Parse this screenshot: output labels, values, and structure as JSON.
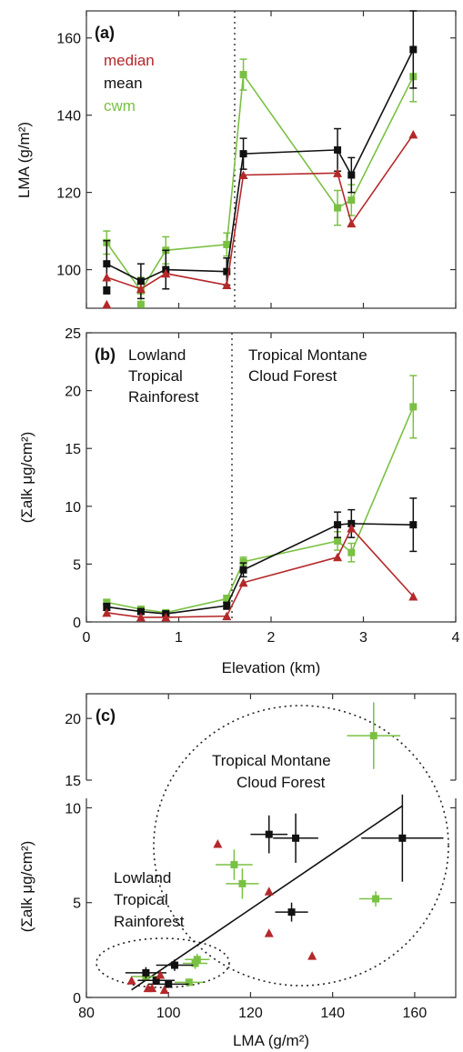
{
  "colors": {
    "median": "#b5282a",
    "mean": "#111111",
    "cwm": "#7ac143",
    "axis": "#333333"
  },
  "chart_data": [
    {
      "panel": "(a)",
      "type": "line",
      "xlim": [
        0,
        4
      ],
      "ylim": [
        90,
        167
      ],
      "ylabel": "LMA (g/m²)",
      "yticks": [
        {
          "v": 100,
          "label": "100"
        },
        {
          "v": 120,
          "label": "120"
        },
        {
          "v": 140,
          "label": "140"
        },
        {
          "v": 160,
          "label": "160"
        }
      ],
      "divider_x": 1.57,
      "legend": [
        "median",
        "mean",
        "cwm"
      ],
      "series": [
        {
          "name": "median",
          "marker": "triangle",
          "color": "#b5282a",
          "x": [
            0.22,
            0.59,
            0.86,
            1.52,
            1.7,
            2.72,
            2.87,
            3.54
          ],
          "y": [
            98,
            95,
            99,
            96,
            124.5,
            125,
            112,
            135
          ],
          "err": [
            0,
            0,
            0,
            0,
            0,
            0,
            0,
            0
          ]
        },
        {
          "name": "mean",
          "marker": "square",
          "color": "#111111",
          "x": [
            0.22,
            0.59,
            0.86,
            1.52,
            1.7,
            2.72,
            2.87,
            3.54
          ],
          "y": [
            101.5,
            97,
            100,
            99.5,
            130,
            131,
            124.5,
            157
          ],
          "err": [
            6,
            4.5,
            5,
            3.5,
            4,
            5.5,
            4.5,
            10
          ]
        },
        {
          "name": "cwm",
          "marker": "square",
          "color": "#7ac143",
          "x": [
            0.22,
            0.59,
            0.86,
            1.52,
            1.7,
            2.72,
            2.87,
            3.54
          ],
          "y": [
            107,
            94.5,
            105,
            106.5,
            150.5,
            116,
            118,
            150
          ],
          "err": [
            3,
            3.5,
            3.5,
            3,
            4,
            4.5,
            4,
            6.5
          ]
        }
      ],
      "extra_points": [
        {
          "x": 0.22,
          "y": 94.5,
          "color": "#111111",
          "marker": "square"
        },
        {
          "x": 0.22,
          "y": 91,
          "color": "#b5282a",
          "marker": "triangle"
        },
        {
          "x": 0.59,
          "y": 91,
          "color": "#7ac143",
          "marker": "square"
        }
      ]
    },
    {
      "panel": "(b)",
      "type": "line",
      "xlim": [
        0,
        4
      ],
      "ylim": [
        0,
        25
      ],
      "xlabel": "Elevation (km)",
      "ylabel": "(Σalk μg/cm²)",
      "xticks": [
        {
          "v": 0,
          "label": "0"
        },
        {
          "v": 1,
          "label": "1"
        },
        {
          "v": 2,
          "label": "2"
        },
        {
          "v": 3,
          "label": "3"
        },
        {
          "v": 4,
          "label": "4"
        }
      ],
      "yticks": [
        {
          "v": 0,
          "label": "0"
        },
        {
          "v": 5,
          "label": "5"
        },
        {
          "v": 10,
          "label": "10"
        },
        {
          "v": 15,
          "label": "15"
        },
        {
          "v": 20,
          "label": "20"
        },
        {
          "v": 25,
          "label": "25"
        }
      ],
      "divider_x": 1.57,
      "annotations": [
        {
          "lines": [
            "Lowland",
            "Tropical",
            "Rainforest"
          ]
        },
        {
          "lines": [
            "Tropical Montane",
            "Cloud Forest"
          ]
        }
      ],
      "series": [
        {
          "name": "median",
          "marker": "triangle",
          "color": "#b5282a",
          "x": [
            0.22,
            0.59,
            0.86,
            1.52,
            1.7,
            2.72,
            2.87,
            3.54
          ],
          "y": [
            0.8,
            0.4,
            0.4,
            0.5,
            3.4,
            5.6,
            8.1,
            2.2
          ],
          "err": [
            0,
            0,
            0,
            0,
            0,
            0,
            0,
            0
          ]
        },
        {
          "name": "mean",
          "marker": "square",
          "color": "#111111",
          "x": [
            0.22,
            0.59,
            0.86,
            1.52,
            1.7,
            2.72,
            2.87,
            3.54
          ],
          "y": [
            1.3,
            0.9,
            0.7,
            1.4,
            4.5,
            8.4,
            8.5,
            8.4
          ],
          "err": [
            0.3,
            0.2,
            0.2,
            0.3,
            0.6,
            1.1,
            1.2,
            2.3
          ]
        },
        {
          "name": "cwm",
          "marker": "square",
          "color": "#7ac143",
          "x": [
            0.22,
            0.59,
            0.86,
            1.52,
            1.7,
            2.72,
            2.87,
            3.54
          ],
          "y": [
            1.7,
            1.1,
            0.8,
            2.0,
            5.2,
            7.0,
            6.0,
            18.6
          ],
          "err": [
            0.2,
            0.2,
            0.2,
            0.3,
            0.4,
            0.8,
            0.8,
            2.7
          ]
        }
      ]
    },
    {
      "panel": "(c)",
      "type": "scatter",
      "xlim": [
        80,
        170
      ],
      "xlabel": "LMA (g/m²)",
      "ylabel": "(Σalk μg/cm²)",
      "xticks": [
        {
          "v": 80,
          "label": "80"
        },
        {
          "v": 100,
          "label": "100"
        },
        {
          "v": 120,
          "label": "120"
        },
        {
          "v": 140,
          "label": "140"
        },
        {
          "v": 160,
          "label": "160"
        }
      ],
      "upper_ylim": [
        15,
        22
      ],
      "lower_ylim": [
        0,
        10.5
      ],
      "upper_yticks": [
        {
          "v": 15,
          "label": "15"
        },
        {
          "v": 20,
          "label": "20"
        }
      ],
      "lower_yticks": [
        {
          "v": 0,
          "label": "0"
        },
        {
          "v": 5,
          "label": "5"
        },
        {
          "v": 10,
          "label": "10"
        }
      ],
      "annotations": [
        {
          "lines": [
            "Tropical Montane",
            "Cloud Forest"
          ]
        },
        {
          "lines": [
            "Lowland",
            "Tropical",
            "Rainforest"
          ]
        }
      ],
      "trendline": {
        "x": [
          91,
          157
        ],
        "y": [
          0.4,
          10.1
        ]
      },
      "series": [
        {
          "name": "mean",
          "marker": "square",
          "color": "#111111",
          "points": [
            {
              "x": 94.5,
              "y": 1.3,
              "xerr": 5,
              "yerr": 0.3
            },
            {
              "x": 97,
              "y": 0.9,
              "xerr": 4.5,
              "yerr": 0.2
            },
            {
              "x": 100,
              "y": 0.7,
              "xerr": 5,
              "yerr": 0.2
            },
            {
              "x": 101.5,
              "y": 1.7,
              "xerr": 4.5,
              "yerr": 0.3
            },
            {
              "x": 130,
              "y": 4.5,
              "xerr": 4,
              "yerr": 0.5
            },
            {
              "x": 124.5,
              "y": 8.6,
              "xerr": 4.5,
              "yerr": 1.0
            },
            {
              "x": 131,
              "y": 8.4,
              "xerr": 5.5,
              "yerr": 1.3
            },
            {
              "x": 157,
              "y": 8.4,
              "xerr": 10,
              "yerr": 2.3
            }
          ]
        },
        {
          "name": "cwm",
          "marker": "square",
          "color": "#7ac143",
          "points": [
            {
              "x": 94.5,
              "y": 1.1,
              "xerr": 3.5,
              "yerr": 0.2
            },
            {
              "x": 105,
              "y": 0.8,
              "xerr": 3.5,
              "yerr": 0.2
            },
            {
              "x": 106.5,
              "y": 1.8,
              "xerr": 3,
              "yerr": 0.3
            },
            {
              "x": 107,
              "y": 2.0,
              "xerr": 3,
              "yerr": 0.3
            },
            {
              "x": 116,
              "y": 7.0,
              "xerr": 4.5,
              "yerr": 0.8
            },
            {
              "x": 118,
              "y": 6.0,
              "xerr": 4,
              "yerr": 0.8
            },
            {
              "x": 150.5,
              "y": 5.2,
              "xerr": 4,
              "yerr": 0.4
            },
            {
              "x": 150,
              "y": 18.6,
              "xerr": 6.5,
              "yerr": 2.7
            }
          ]
        },
        {
          "name": "median",
          "marker": "triangle",
          "color": "#b5282a",
          "points": [
            {
              "x": 91,
              "y": 0.9
            },
            {
              "x": 95,
              "y": 0.5
            },
            {
              "x": 96,
              "y": 0.5
            },
            {
              "x": 99,
              "y": 0.4
            },
            {
              "x": 98,
              "y": 1.2
            },
            {
              "x": 112,
              "y": 8.1
            },
            {
              "x": 124.5,
              "y": 5.6
            },
            {
              "x": 124.5,
              "y": 3.4
            },
            {
              "x": 135,
              "y": 2.2
            }
          ]
        }
      ]
    }
  ]
}
